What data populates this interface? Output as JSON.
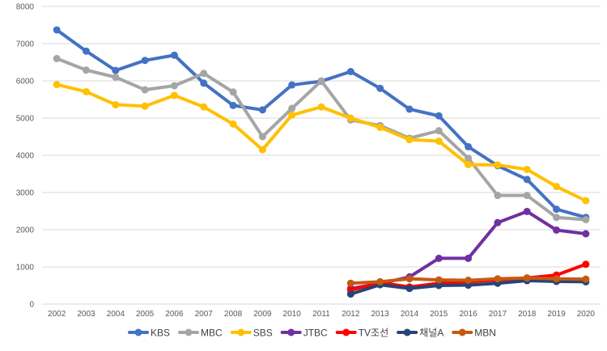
{
  "chart_data": {
    "type": "line",
    "title": "",
    "xlabel": "",
    "ylabel": "",
    "ylim": [
      0,
      8000
    ],
    "y_ticks": [
      0,
      1000,
      2000,
      3000,
      4000,
      5000,
      6000,
      7000,
      8000
    ],
    "grid": true,
    "legend_position": "bottom",
    "categories": [
      "2002",
      "2003",
      "2004",
      "2005",
      "2006",
      "2007",
      "2008",
      "2009",
      "2010",
      "2011",
      "2012",
      "2013",
      "2014",
      "2015",
      "2016",
      "2017",
      "2018",
      "2019",
      "2020"
    ],
    "series": [
      {
        "name": "KBS",
        "color": "#4472C4",
        "values": [
          7370,
          6800,
          6280,
          6550,
          6690,
          5940,
          5340,
          5220,
          5890,
          5990,
          6250,
          5800,
          5240,
          5060,
          4230,
          3720,
          3350,
          2550,
          2330
        ]
      },
      {
        "name": "MBC",
        "color": "#A5A5A5",
        "values": [
          6600,
          6290,
          6100,
          5760,
          5870,
          6200,
          5700,
          4500,
          5260,
          6000,
          4950,
          4800,
          4460,
          4660,
          3920,
          2920,
          2920,
          2330,
          2270
        ]
      },
      {
        "name": "SBS",
        "color": "#FFC000",
        "values": [
          5900,
          5710,
          5360,
          5320,
          5610,
          5300,
          4840,
          4150,
          5080,
          5300,
          5000,
          4750,
          4420,
          4380,
          3750,
          3740,
          3620,
          3160,
          2780
        ]
      },
      {
        "name": "JTBC",
        "color": "#7030A0",
        "values": [
          null,
          null,
          null,
          null,
          null,
          null,
          null,
          null,
          null,
          null,
          420,
          550,
          730,
          1230,
          1230,
          2190,
          2490,
          1990,
          1890
        ]
      },
      {
        "name": "TV조선",
        "color": "#FF0000",
        "values": [
          null,
          null,
          null,
          null,
          null,
          null,
          null,
          null,
          null,
          null,
          380,
          580,
          460,
          560,
          600,
          650,
          700,
          780,
          1070
        ]
      },
      {
        "name": "채널A",
        "color": "#264478",
        "values": [
          null,
          null,
          null,
          null,
          null,
          null,
          null,
          null,
          null,
          null,
          270,
          520,
          420,
          500,
          510,
          560,
          630,
          610,
          600
        ]
      },
      {
        "name": "MBN",
        "color": "#C55A11",
        "values": [
          null,
          null,
          null,
          null,
          null,
          null,
          null,
          null,
          null,
          null,
          560,
          600,
          680,
          650,
          640,
          680,
          700,
          680,
          670
        ]
      }
    ]
  }
}
